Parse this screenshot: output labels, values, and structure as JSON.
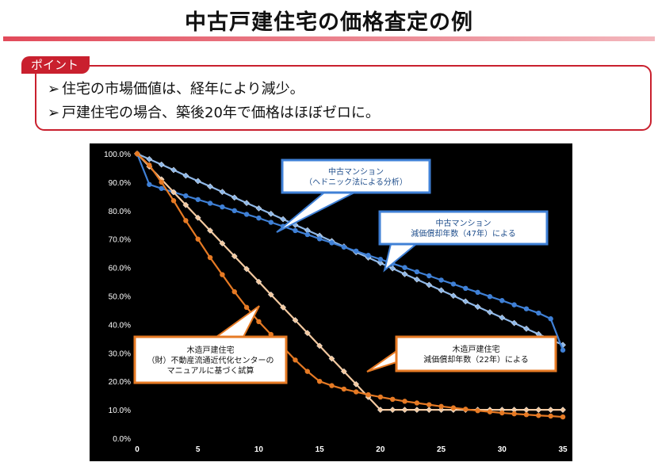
{
  "title": "中古戸建住宅の価格査定の例",
  "point_label": "ポイント",
  "bullets": [
    "住宅の市場価値は、経年により減少。",
    "戸建住宅の場合、築後20年で価格はほぼゼロに。"
  ],
  "bullet_mark": "➢",
  "chart_data": {
    "type": "line",
    "background": "#000000",
    "xlim": [
      0,
      35
    ],
    "ylim": [
      0,
      100
    ],
    "x_ticks": [
      "0",
      "5",
      "10",
      "15",
      "20",
      "25",
      "30",
      "35"
    ],
    "y_ticks": [
      "0.0%",
      "10.0%",
      "20.0%",
      "30.0%",
      "40.0%",
      "50.0%",
      "60.0%",
      "70.0%",
      "80.0%",
      "90.0%",
      "100.0%"
    ],
    "grid": false,
    "x": [
      0,
      1,
      2,
      3,
      4,
      5,
      6,
      7,
      8,
      9,
      10,
      11,
      12,
      13,
      14,
      15,
      16,
      17,
      18,
      19,
      20,
      21,
      22,
      23,
      24,
      25,
      26,
      27,
      28,
      29,
      30,
      31,
      32,
      33,
      34,
      35
    ],
    "series": [
      {
        "color": "#8fb8e8",
        "marker": "diamond",
        "values": [
          100,
          98.1,
          96.2,
          94.3,
          92.3,
          90.4,
          88.5,
          86.6,
          84.6,
          82.7,
          80.8,
          78.9,
          77.0,
          75.0,
          73.1,
          71.2,
          69.3,
          67.4,
          65.4,
          63.5,
          61.6,
          59.7,
          57.7,
          55.8,
          53.9,
          52.0,
          50.1,
          48.1,
          46.2,
          44.3,
          42.4,
          40.5,
          38.5,
          36.6,
          34.7,
          32.8
        ]
      },
      {
        "color": "#3f80d6",
        "marker": "circle",
        "values": [
          100,
          89.2,
          87.8,
          86.5,
          85.2,
          83.9,
          82.6,
          81.3,
          80.0,
          78.7,
          77.4,
          75.9,
          74.5,
          73.0,
          71.6,
          70.1,
          68.7,
          67.2,
          65.8,
          64.3,
          62.9,
          61.4,
          60.0,
          58.5,
          57.1,
          55.6,
          54.2,
          52.7,
          51.3,
          49.8,
          48.4,
          46.9,
          45.5,
          44.0,
          42.0,
          31.0
        ]
      },
      {
        "color": "#f3c9a0",
        "marker": "diamond",
        "values": [
          100,
          95.5,
          91.0,
          86.5,
          82.0,
          77.5,
          73.0,
          68.5,
          64.0,
          59.5,
          55.0,
          50.5,
          46.0,
          41.5,
          37.0,
          32.5,
          28.0,
          23.5,
          19.0,
          14.5,
          10.0,
          10.0,
          10.0,
          10.0,
          10.0,
          10.0,
          10.0,
          10.0,
          10.0,
          10.0,
          10.0,
          10.0,
          10.0,
          10.0,
          10.0,
          10.0
        ]
      },
      {
        "color": "#e67a24",
        "marker": "circle",
        "values": [
          100,
          96.0,
          90.0,
          83.5,
          76.5,
          70.0,
          63.5,
          57.5,
          51.5,
          46.0,
          41.0,
          36.5,
          32.0,
          27.5,
          23.5,
          20.0,
          18.5,
          17.3,
          16.3,
          15.3,
          14.5,
          13.7,
          13.0,
          12.4,
          11.8,
          11.2,
          10.7,
          10.2,
          9.7,
          9.3,
          8.9,
          8.6,
          8.3,
          8.0,
          7.8,
          7.5
        ]
      }
    ],
    "callouts": [
      {
        "lines": [
          "中古マンション",
          "（ヘドニック法による分析）"
        ],
        "border": "#3f80d6",
        "text_color": "#1f4e8c"
      },
      {
        "lines": [
          "中古マンション",
          "減価償却年数（47年）による"
        ],
        "border": "#3f80d6",
        "text_color": "#1f4e8c"
      },
      {
        "lines": [
          "木造戸建住宅",
          "（財）不動産流通近代化センターの",
          "マニュアルに基づく試算"
        ],
        "border": "#e67a24",
        "text_color": "#111111"
      },
      {
        "lines": [
          "木造戸建住宅",
          "減価償却年数（22年）による"
        ],
        "border": "#e67a24",
        "text_color": "#111111"
      }
    ]
  }
}
